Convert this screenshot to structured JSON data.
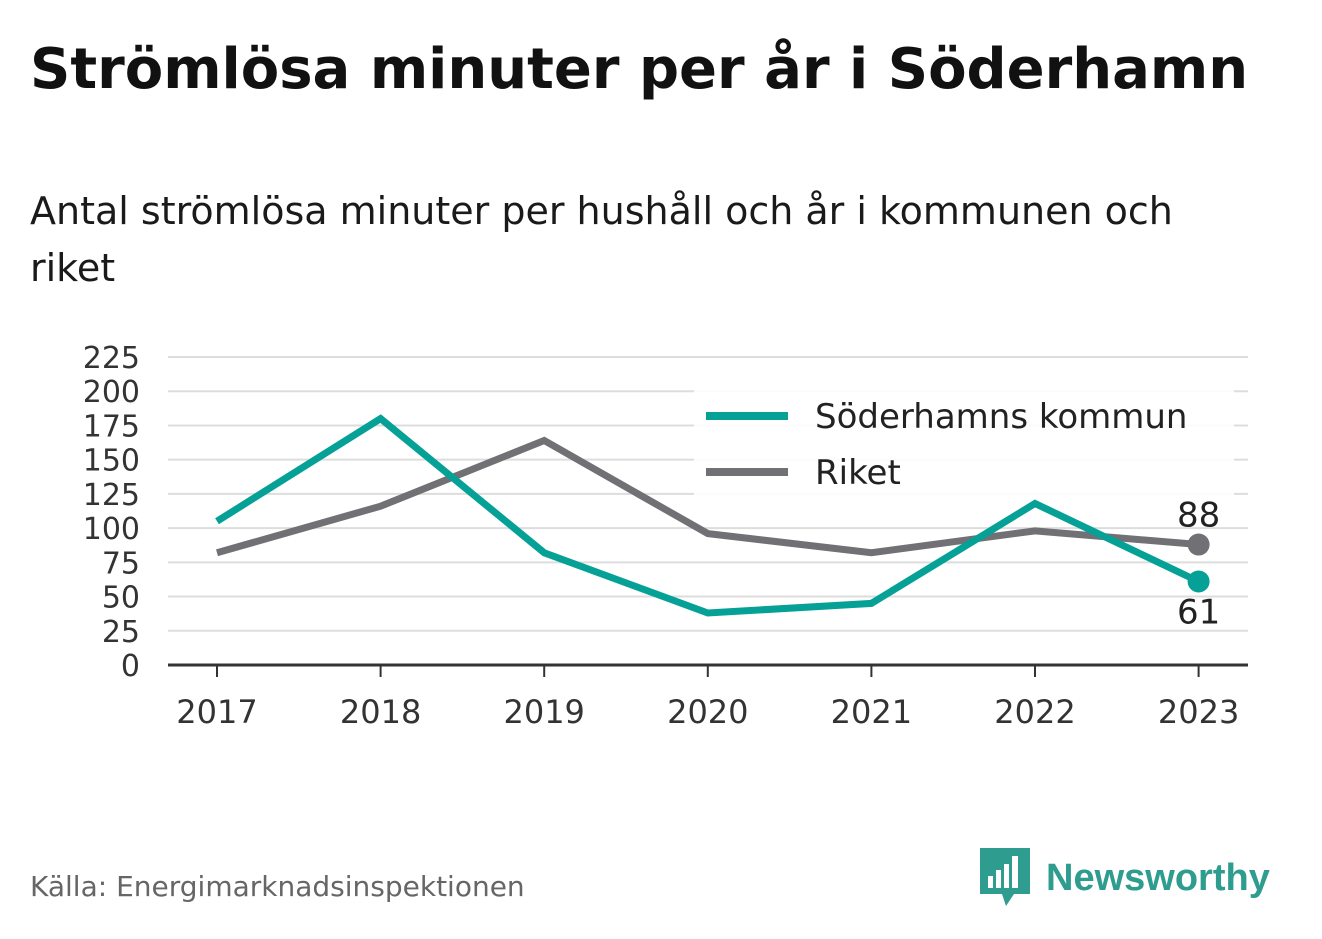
{
  "header": {
    "title": "Strömlösa minuter per år i Söderhamn",
    "subtitle": "Antal strömlösa minuter per hushåll och år i kommunen och riket"
  },
  "chart_data": {
    "type": "line",
    "x": [
      "2017",
      "2018",
      "2019",
      "2020",
      "2021",
      "2022",
      "2023"
    ],
    "series": [
      {
        "name": "Söderhamns kommun",
        "color": "#06a196",
        "values": [
          105,
          180,
          82,
          38,
          45,
          118,
          61
        ],
        "end_label": "61"
      },
      {
        "name": "Riket",
        "color": "#707075",
        "values": [
          82,
          116,
          164,
          96,
          82,
          98,
          88
        ],
        "end_label": "88"
      }
    ],
    "yticks": [
      "0",
      "25",
      "50",
      "75",
      "100",
      "125",
      "150",
      "175",
      "200",
      "225"
    ],
    "ylim": [
      0,
      225
    ],
    "grid": true,
    "legend_position": "top-right",
    "xlabel": "",
    "ylabel": ""
  },
  "footer": {
    "source": "Källa: Energimarknadsinspektionen",
    "brand": "Newsworthy",
    "brand_color": "#2e9c8e"
  }
}
